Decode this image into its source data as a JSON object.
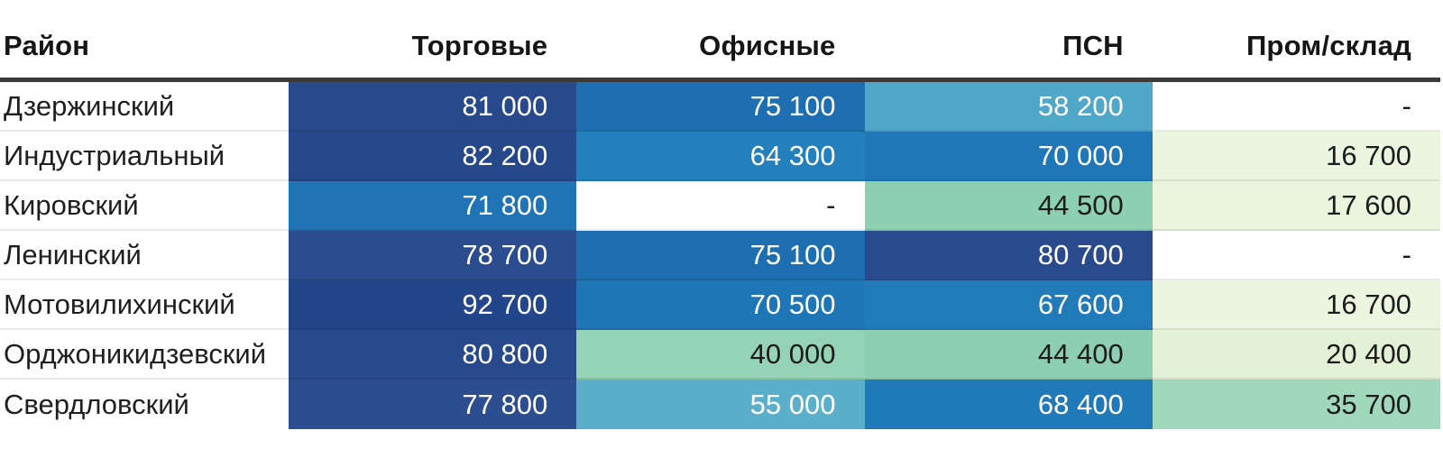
{
  "table": {
    "columns": [
      "Район",
      "Торговые",
      "Офисные",
      "ПСН",
      "Пром/склад"
    ],
    "rows": [
      {
        "district": "Дзержинский",
        "cells": [
          {
            "text": "81 000",
            "bg": "#284a8d",
            "fg": "#ffffff"
          },
          {
            "text": "75 100",
            "bg": "#1d6fb2",
            "fg": "#ffffff"
          },
          {
            "text": "58 200",
            "bg": "#4fa8c8",
            "fg": "#ffffff"
          },
          {
            "text": "-",
            "bg": "#ffffff",
            "fg": "#1c1c1c"
          }
        ]
      },
      {
        "district": "Индустриальный",
        "cells": [
          {
            "text": "82 200",
            "bg": "#26488b",
            "fg": "#ffffff"
          },
          {
            "text": "64 300",
            "bg": "#2380bc",
            "fg": "#ffffff"
          },
          {
            "text": "70 000",
            "bg": "#1f77b7",
            "fg": "#ffffff"
          },
          {
            "text": "16 700",
            "bg": "#ebf6e0",
            "fg": "#1c1c1c"
          }
        ]
      },
      {
        "district": "Кировский",
        "cells": [
          {
            "text": "71 800",
            "bg": "#1e74b5",
            "fg": "#ffffff"
          },
          {
            "text": "-",
            "bg": "#ffffff",
            "fg": "#1c1c1c"
          },
          {
            "text": "44 500",
            "bg": "#8ccfb1",
            "fg": "#1c1c1c"
          },
          {
            "text": "17 600",
            "bg": "#e9f5dd",
            "fg": "#1c1c1c"
          }
        ]
      },
      {
        "district": "Ленинский",
        "cells": [
          {
            "text": "78 700",
            "bg": "#2b4d8f",
            "fg": "#ffffff"
          },
          {
            "text": "75 100",
            "bg": "#1d6fb2",
            "fg": "#ffffff"
          },
          {
            "text": "80 700",
            "bg": "#294b8d",
            "fg": "#ffffff"
          },
          {
            "text": "-",
            "bg": "#ffffff",
            "fg": "#1c1c1c"
          }
        ]
      },
      {
        "district": "Мотовилихинский",
        "cells": [
          {
            "text": "92 700",
            "bg": "#23458a",
            "fg": "#ffffff"
          },
          {
            "text": "70 500",
            "bg": "#1f76b6",
            "fg": "#ffffff"
          },
          {
            "text": "67 600",
            "bg": "#217bb9",
            "fg": "#ffffff"
          },
          {
            "text": "16 700",
            "bg": "#ebf6e0",
            "fg": "#1c1c1c"
          }
        ]
      },
      {
        "district": "Орджоникидзевский",
        "cells": [
          {
            "text": "80 800",
            "bg": "#284a8d",
            "fg": "#ffffff"
          },
          {
            "text": "40 000",
            "bg": "#95d3b6",
            "fg": "#1c1c1c"
          },
          {
            "text": "44 400",
            "bg": "#8dcfb2",
            "fg": "#1c1c1c"
          },
          {
            "text": "20 400",
            "bg": "#e3f2d6",
            "fg": "#1c1c1c"
          }
        ]
      },
      {
        "district": "Свердловский",
        "cells": [
          {
            "text": "77 800",
            "bg": "#2c4e90",
            "fg": "#ffffff"
          },
          {
            "text": "55 000",
            "bg": "#5ab0cb",
            "fg": "#ffffff"
          },
          {
            "text": "68 400",
            "bg": "#2079b8",
            "fg": "#ffffff"
          },
          {
            "text": "35 700",
            "bg": "#a0d8bc",
            "fg": "#1c1c1c"
          }
        ]
      }
    ]
  },
  "colors": {
    "navy_high": "#284a8d",
    "blue_mid": "#1f76b6",
    "sky": "#4fa8c8",
    "teal_low": "#8ccfb1",
    "pale_green_lowest": "#ebf6e0",
    "header_rule": "#3a3a3a",
    "missing_cell": "#ffffff"
  },
  "chart_data": {
    "type": "heatmap",
    "title": "",
    "row_header_label": "Район",
    "rows": [
      "Дзержинский",
      "Индустриальный",
      "Кировский",
      "Ленинский",
      "Мотовилихинский",
      "Орджоникидзевский",
      "Свердловский"
    ],
    "columns": [
      "Торговые",
      "Офисные",
      "ПСН",
      "Пром/склад"
    ],
    "values": [
      [
        81000,
        75100,
        58200,
        null
      ],
      [
        82200,
        64300,
        70000,
        16700
      ],
      [
        71800,
        null,
        44500,
        17600
      ],
      [
        78700,
        75100,
        80700,
        null
      ],
      [
        92700,
        70500,
        67600,
        16700
      ],
      [
        80800,
        40000,
        44400,
        20400
      ],
      [
        77800,
        55000,
        68400,
        35700
      ]
    ],
    "missing_marker": "-",
    "value_range": [
      16700,
      92700
    ],
    "colormap": "pale-green (low) -> teal -> sky blue -> medium blue -> navy (high)",
    "notes": "Number format uses space as thousands separator; values right-aligned in cells; null shown as dash on white"
  }
}
